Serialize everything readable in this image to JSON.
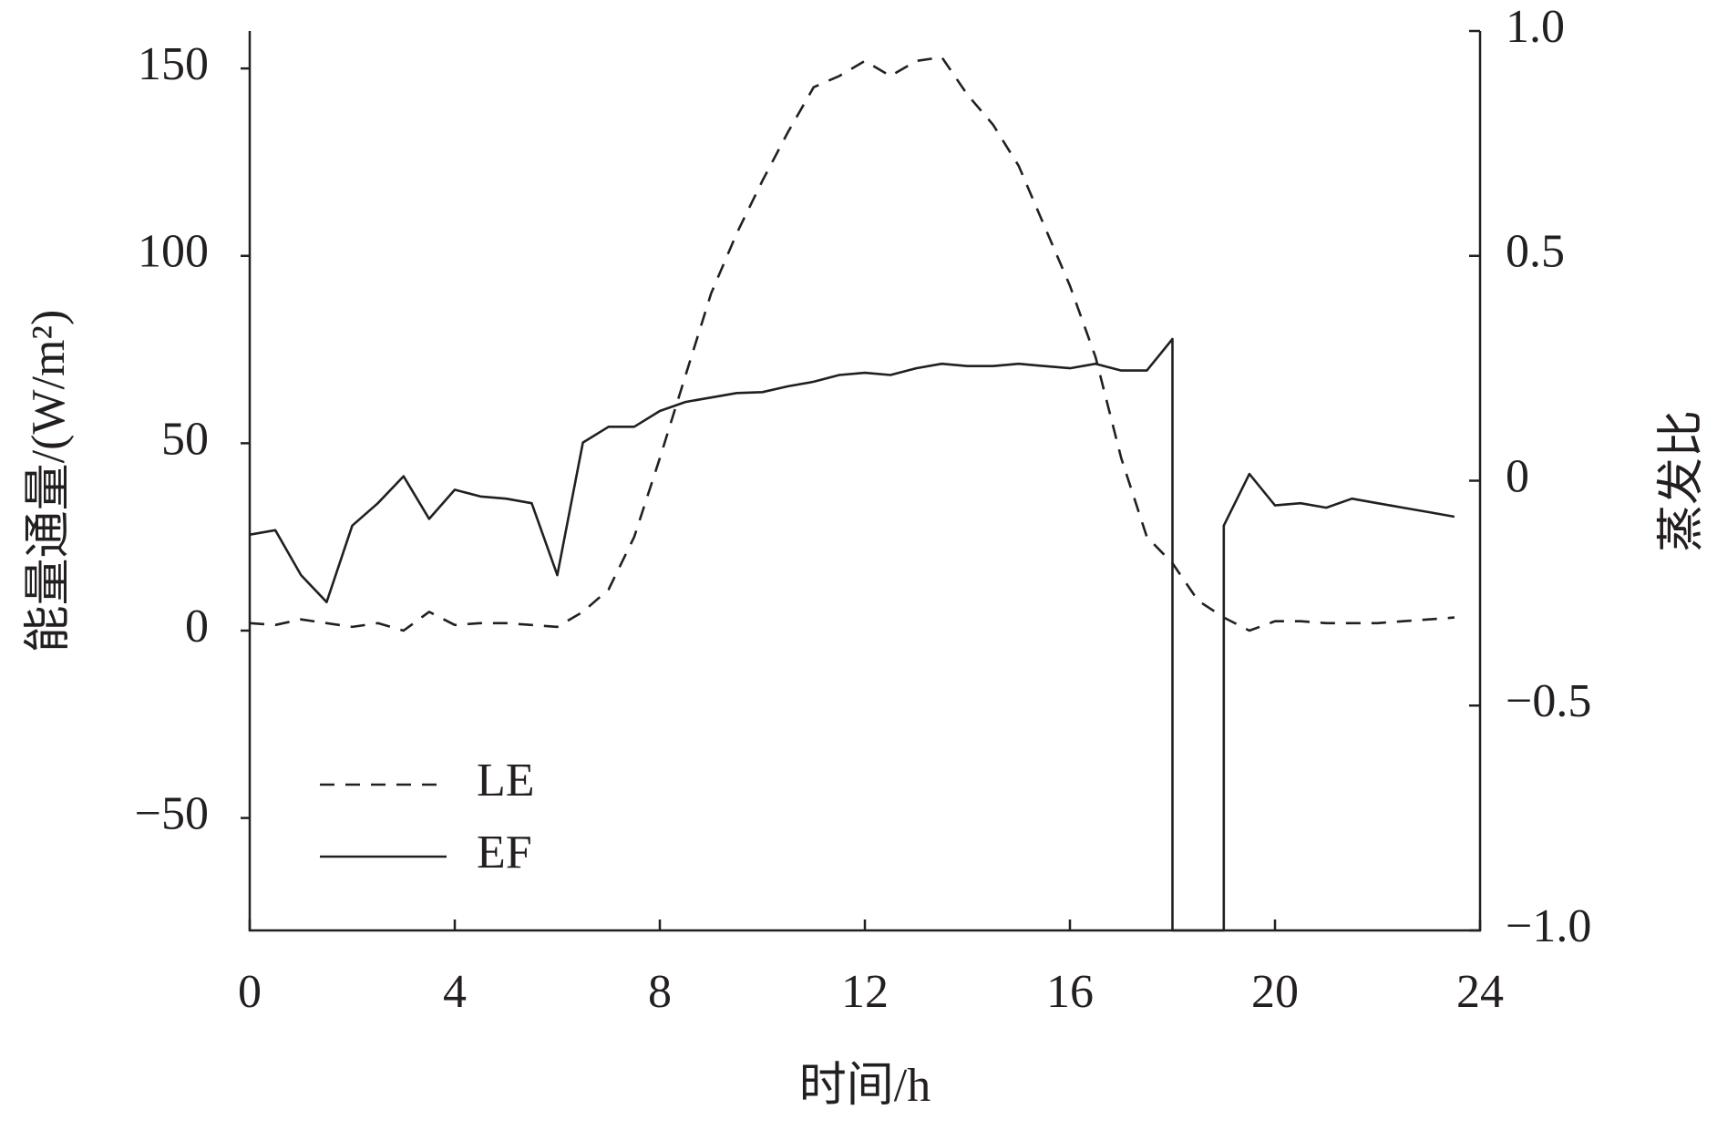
{
  "chart_data": {
    "type": "line",
    "xlabel": "时间/h",
    "ylabel": "能量通量/(W/m²)",
    "y2label": "蒸发比",
    "xlim": [
      0,
      24
    ],
    "xticks": [
      0,
      4,
      8,
      12,
      16,
      20,
      24
    ],
    "ylim": [
      -80,
      160
    ],
    "yticks": [
      {
        "value": -50,
        "label": "−50"
      },
      0,
      50,
      100,
      150
    ],
    "y2lim": [
      -1,
      1
    ],
    "y2ticks": [
      {
        "value": -1,
        "label": "−1.0"
      },
      {
        "value": -0.5,
        "label": "−0.5"
      },
      0,
      {
        "value": 0.5,
        "label": "0.5"
      },
      {
        "value": 1,
        "label": "1.0"
      }
    ],
    "grid": false,
    "legend": "lower left",
    "x": [
      0,
      0.5,
      1,
      1.5,
      2,
      2.5,
      3,
      3.5,
      4,
      4.5,
      5,
      5.5,
      6,
      6.5,
      7,
      7.5,
      8,
      8.5,
      9,
      9.5,
      10,
      10.5,
      11,
      11.5,
      12,
      12.5,
      13,
      13.5,
      14,
      14.5,
      15,
      15.5,
      16,
      16.5,
      17,
      17.5,
      18,
      18.5,
      19,
      19.5,
      20,
      20.5,
      21,
      21.5,
      22,
      22.5,
      23,
      23.5
    ],
    "series": [
      {
        "name": "LE",
        "color": "#231f20",
        "dash": true,
        "values": [
          2,
          1.5,
          3,
          2,
          1,
          2,
          0,
          5,
          1.5,
          2,
          2,
          1.5,
          1,
          5,
          11,
          25,
          46,
          68,
          90,
          106,
          120,
          133,
          145,
          148,
          152,
          148,
          152,
          153,
          143,
          135,
          124,
          108,
          92,
          73,
          46,
          25,
          18,
          8,
          3.5,
          0,
          2.5,
          2.5,
          2,
          2,
          2,
          2.5,
          3,
          3.5
        ]
      },
      {
        "name": "EF",
        "color": "#231f20",
        "dash": false,
        "axis": "y2",
        "x": [
          0,
          0.5,
          1,
          1.5,
          2,
          2.5,
          3,
          3.5,
          4,
          4.5,
          5,
          5.5,
          6,
          6.5,
          7,
          7.5,
          8,
          8.5,
          9,
          9.5,
          10,
          10.5,
          11,
          11.5,
          12,
          12.5,
          13,
          13.5,
          14,
          14.5,
          15,
          15.5,
          16,
          16.5,
          17,
          17.5,
          18,
          18,
          19,
          19,
          19.5,
          20,
          20.5,
          21,
          21.5,
          22,
          22.5,
          23,
          23.5
        ],
        "values": [
          -0.12,
          -0.11,
          -0.21,
          -0.27,
          -0.1,
          -0.05,
          0.01,
          -0.085,
          -0.02,
          -0.035,
          -0.04,
          -0.05,
          -0.21,
          0.085,
          0.12,
          0.12,
          0.155,
          0.175,
          0.185,
          0.195,
          0.197,
          0.21,
          0.22,
          0.235,
          0.24,
          0.235,
          0.25,
          0.26,
          0.255,
          0.255,
          0.26,
          0.255,
          0.25,
          0.26,
          0.245,
          0.245,
          0.315,
          -1,
          -1,
          -0.1,
          0.015,
          -0.055,
          -0.05,
          -0.06,
          -0.04,
          -0.05,
          -0.06,
          -0.07,
          -0.08
        ]
      }
    ]
  }
}
